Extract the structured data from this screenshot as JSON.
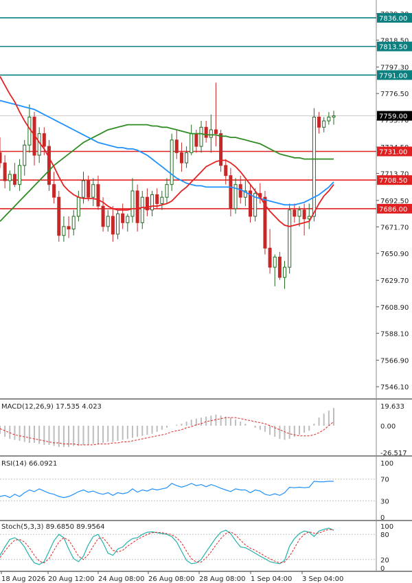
{
  "chart_data": {
    "type": "candlestick",
    "colors": {
      "up_candle": "#1e6b1e",
      "down_candle": "#c62828",
      "ma_fast": "#e62020",
      "ma_mid": "#1e90ff",
      "ma_slow": "#2e8b22",
      "support_line": "#e02020",
      "resistance_line": "#0b7f7f",
      "tag_red": "#e02020",
      "tag_teal": "#0b7f7f",
      "tag_current": "#000000",
      "macd_hist": "#bdbdbd",
      "macd_signal": "#e02020",
      "rsi_line": "#1e90ff",
      "stoch_main": "#20b2aa",
      "stoch_signal": "#e02020"
    },
    "price_axis": {
      "ticks": [
        "7839.30",
        "7818.50",
        "7797.30",
        "7776.50",
        "7755.70",
        "7734.50",
        "7713.70",
        "7692.50",
        "7671.70",
        "7650.90",
        "7629.70",
        "7608.90",
        "7588.10",
        "7566.90",
        "7546.10"
      ],
      "ylim": [
        7537.0,
        7850.0
      ]
    },
    "horizontal_levels": [
      {
        "value": 7836.0,
        "label": "7836.00",
        "kind": "resistance"
      },
      {
        "value": 7813.5,
        "label": "7813.50",
        "kind": "resistance"
      },
      {
        "value": 7791.0,
        "label": "7791.00",
        "kind": "resistance"
      },
      {
        "value": 7731.0,
        "label": "7731.00",
        "kind": "support"
      },
      {
        "value": 7708.5,
        "label": "7708.50",
        "kind": "support"
      },
      {
        "value": 7686.0,
        "label": "7686.00",
        "kind": "support"
      }
    ],
    "current_price": {
      "value": 7759.0,
      "label": "7759.00"
    },
    "x_labels": [
      "18 Aug 2026",
      "20 Aug 12:00",
      "24 Aug 08:00",
      "26 Aug 08:00",
      "28 Aug 08:00",
      "1 Sep 04:00",
      "3 Sep 04:00"
    ],
    "candles": [
      {
        "o": 7730,
        "h": 7742,
        "l": 7718,
        "c": 7722
      },
      {
        "o": 7722,
        "h": 7728,
        "l": 7702,
        "c": 7708
      },
      {
        "o": 7708,
        "h": 7716,
        "l": 7700,
        "c": 7713
      },
      {
        "o": 7713,
        "h": 7722,
        "l": 7703,
        "c": 7705
      },
      {
        "o": 7705,
        "h": 7725,
        "l": 7700,
        "c": 7720
      },
      {
        "o": 7720,
        "h": 7740,
        "l": 7712,
        "c": 7736
      },
      {
        "o": 7736,
        "h": 7768,
        "l": 7730,
        "c": 7758
      },
      {
        "o": 7758,
        "h": 7762,
        "l": 7720,
        "c": 7728
      },
      {
        "o": 7728,
        "h": 7750,
        "l": 7722,
        "c": 7745
      },
      {
        "o": 7745,
        "h": 7750,
        "l": 7728,
        "c": 7735
      },
      {
        "o": 7735,
        "h": 7740,
        "l": 7700,
        "c": 7705
      },
      {
        "o": 7705,
        "h": 7715,
        "l": 7690,
        "c": 7695
      },
      {
        "o": 7695,
        "h": 7700,
        "l": 7660,
        "c": 7665
      },
      {
        "o": 7665,
        "h": 7680,
        "l": 7660,
        "c": 7672
      },
      {
        "o": 7672,
        "h": 7680,
        "l": 7663,
        "c": 7670
      },
      {
        "o": 7670,
        "h": 7685,
        "l": 7665,
        "c": 7680
      },
      {
        "o": 7680,
        "h": 7700,
        "l": 7676,
        "c": 7695
      },
      {
        "o": 7695,
        "h": 7715,
        "l": 7690,
        "c": 7708
      },
      {
        "o": 7708,
        "h": 7712,
        "l": 7692,
        "c": 7695
      },
      {
        "o": 7695,
        "h": 7710,
        "l": 7688,
        "c": 7705
      },
      {
        "o": 7705,
        "h": 7712,
        "l": 7685,
        "c": 7688
      },
      {
        "o": 7688,
        "h": 7695,
        "l": 7668,
        "c": 7672
      },
      {
        "o": 7672,
        "h": 7685,
        "l": 7668,
        "c": 7680
      },
      {
        "o": 7680,
        "h": 7688,
        "l": 7660,
        "c": 7666
      },
      {
        "o": 7666,
        "h": 7685,
        "l": 7662,
        "c": 7682
      },
      {
        "o": 7682,
        "h": 7690,
        "l": 7670,
        "c": 7675
      },
      {
        "o": 7675,
        "h": 7682,
        "l": 7668,
        "c": 7680
      },
      {
        "o": 7680,
        "h": 7710,
        "l": 7675,
        "c": 7700
      },
      {
        "o": 7700,
        "h": 7705,
        "l": 7668,
        "c": 7675
      },
      {
        "o": 7675,
        "h": 7700,
        "l": 7670,
        "c": 7695
      },
      {
        "o": 7695,
        "h": 7702,
        "l": 7680,
        "c": 7685
      },
      {
        "o": 7685,
        "h": 7700,
        "l": 7680,
        "c": 7697
      },
      {
        "o": 7697,
        "h": 7702,
        "l": 7686,
        "c": 7690
      },
      {
        "o": 7690,
        "h": 7700,
        "l": 7685,
        "c": 7695
      },
      {
        "o": 7695,
        "h": 7710,
        "l": 7690,
        "c": 7705
      },
      {
        "o": 7705,
        "h": 7745,
        "l": 7700,
        "c": 7740
      },
      {
        "o": 7740,
        "h": 7748,
        "l": 7725,
        "c": 7730
      },
      {
        "o": 7730,
        "h": 7738,
        "l": 7715,
        "c": 7722
      },
      {
        "o": 7722,
        "h": 7735,
        "l": 7718,
        "c": 7730
      },
      {
        "o": 7730,
        "h": 7752,
        "l": 7728,
        "c": 7745
      },
      {
        "o": 7745,
        "h": 7748,
        "l": 7730,
        "c": 7735
      },
      {
        "o": 7735,
        "h": 7755,
        "l": 7730,
        "c": 7750
      },
      {
        "o": 7750,
        "h": 7755,
        "l": 7738,
        "c": 7742
      },
      {
        "o": 7742,
        "h": 7760,
        "l": 7730,
        "c": 7748
      },
      {
        "o": 7748,
        "h": 7785,
        "l": 7735,
        "c": 7745
      },
      {
        "o": 7745,
        "h": 7748,
        "l": 7715,
        "c": 7720
      },
      {
        "o": 7720,
        "h": 7725,
        "l": 7705,
        "c": 7712
      },
      {
        "o": 7712,
        "h": 7718,
        "l": 7680,
        "c": 7686
      },
      {
        "o": 7686,
        "h": 7710,
        "l": 7682,
        "c": 7705
      },
      {
        "o": 7705,
        "h": 7712,
        "l": 7690,
        "c": 7695
      },
      {
        "o": 7695,
        "h": 7708,
        "l": 7688,
        "c": 7700
      },
      {
        "o": 7700,
        "h": 7705,
        "l": 7675,
        "c": 7680
      },
      {
        "o": 7680,
        "h": 7702,
        "l": 7676,
        "c": 7698
      },
      {
        "o": 7698,
        "h": 7706,
        "l": 7690,
        "c": 7695
      },
      {
        "o": 7695,
        "h": 7700,
        "l": 7650,
        "c": 7655
      },
      {
        "o": 7655,
        "h": 7670,
        "l": 7635,
        "c": 7640
      },
      {
        "o": 7640,
        "h": 7650,
        "l": 7625,
        "c": 7648
      },
      {
        "o": 7648,
        "h": 7652,
        "l": 7630,
        "c": 7632
      },
      {
        "o": 7632,
        "h": 7645,
        "l": 7623,
        "c": 7640
      },
      {
        "o": 7640,
        "h": 7690,
        "l": 7635,
        "c": 7685
      },
      {
        "o": 7685,
        "h": 7690,
        "l": 7675,
        "c": 7680
      },
      {
        "o": 7680,
        "h": 7688,
        "l": 7672,
        "c": 7685
      },
      {
        "o": 7685,
        "h": 7690,
        "l": 7665,
        "c": 7678
      },
      {
        "o": 7678,
        "h": 7690,
        "l": 7670,
        "c": 7680
      },
      {
        "o": 7680,
        "h": 7765,
        "l": 7676,
        "c": 7758
      },
      {
        "o": 7758,
        "h": 7762,
        "l": 7745,
        "c": 7750
      },
      {
        "o": 7750,
        "h": 7758,
        "l": 7746,
        "c": 7755
      },
      {
        "o": 7755,
        "h": 7762,
        "l": 7752,
        "c": 7758
      },
      {
        "o": 7758,
        "h": 7763,
        "l": 7752,
        "c": 7759
      }
    ],
    "ma_fast": [
      7790,
      7783,
      7776,
      7770,
      7762,
      7755,
      7749,
      7744,
      7738,
      7733,
      7726,
      7719,
      7711,
      7704,
      7700,
      7697,
      7695,
      7694,
      7694,
      7694,
      7693,
      7691,
      7688,
      7686,
      7685,
      7685,
      7685,
      7686,
      7686,
      7687,
      7687,
      7688,
      7688,
      7689,
      7690,
      7692,
      7696,
      7700,
      7703,
      7707,
      7711,
      7715,
      7719,
      7721,
      7723,
      7724,
      7724,
      7722,
      7719,
      7715,
      7710,
      7705,
      7700,
      7695,
      7689,
      7684,
      7680,
      7676,
      7673,
      7672,
      7673,
      7674,
      7675,
      7676,
      7683,
      7690,
      7696,
      7700,
      7705
    ],
    "ma_mid": [
      7771,
      7770,
      7769,
      7768,
      7767,
      7766,
      7765,
      7764,
      7762,
      7760,
      7758,
      7756,
      7754,
      7752,
      7750,
      7748,
      7746,
      7744,
      7742,
      7740,
      7738,
      7737,
      7736,
      7735,
      7734,
      7734,
      7733,
      7733,
      7732,
      7730,
      7728,
      7725,
      7722,
      7719,
      7716,
      7713,
      7710,
      7708,
      7706,
      7705,
      7704,
      7704,
      7703,
      7703,
      7703,
      7703,
      7703,
      7703,
      7702,
      7701,
      7699,
      7697,
      7695,
      7694,
      7693,
      7692,
      7691,
      7690,
      7689,
      7689,
      7689,
      7690,
      7691,
      7693,
      7695,
      7697,
      7700,
      7703,
      7707
    ],
    "ma_slow": [
      7676,
      7680,
      7684,
      7688,
      7692,
      7696,
      7700,
      7704,
      7708,
      7712,
      7716,
      7720,
      7723,
      7726,
      7729,
      7732,
      7735,
      7738,
      7740,
      7742,
      7744,
      7746,
      7748,
      7749,
      7750,
      7751,
      7752,
      7752,
      7752,
      7752,
      7752,
      7751,
      7751,
      7750,
      7750,
      7749,
      7748,
      7747,
      7746,
      7745,
      7745,
      7745,
      7744,
      7744,
      7744,
      7743,
      7743,
      7742,
      7742,
      7741,
      7740,
      7739,
      7738,
      7737,
      7735,
      7733,
      7731,
      7729,
      7728,
      7727,
      7726,
      7726,
      7725,
      7725,
      7725,
      7725,
      7725,
      7725,
      7725
    ],
    "macd": {
      "label": "MACD(12,26,9) 17.535 4.023",
      "ticks": [
        "19.633",
        "0.00",
        "-26.517"
      ],
      "range": [
        -26.517,
        19.633
      ],
      "histogram": [
        -8,
        -11,
        -13,
        -14,
        -15,
        -16,
        -17,
        -17,
        -18,
        -19,
        -19,
        -20,
        -21,
        -21,
        -21,
        -20,
        -20,
        -19,
        -19,
        -18,
        -18,
        -17,
        -16,
        -16,
        -15,
        -14,
        -13,
        -12,
        -11,
        -10,
        -9,
        -8,
        -6,
        -4,
        -2,
        0,
        1,
        2,
        4,
        6,
        7,
        8,
        9,
        10,
        11,
        10,
        9,
        8,
        6,
        4,
        2,
        0,
        -2,
        -4,
        -6,
        -9,
        -11,
        -13,
        -14,
        -13,
        -11,
        -9,
        -7,
        -5,
        2,
        8,
        12,
        15,
        17.5
      ],
      "signal": [
        -3,
        -5,
        -7,
        -9,
        -10,
        -11,
        -12,
        -13,
        -14,
        -15,
        -16,
        -17,
        -17,
        -18,
        -18,
        -18,
        -19,
        -19,
        -19,
        -19,
        -18,
        -18,
        -18,
        -17,
        -17,
        -16,
        -16,
        -15,
        -14,
        -13,
        -12,
        -11,
        -10,
        -9,
        -8,
        -6,
        -5,
        -4,
        -2,
        -1,
        1,
        2,
        4,
        5,
        6,
        7,
        8,
        8,
        8,
        7,
        6,
        5,
        4,
        3,
        2,
        0,
        -2,
        -4,
        -6,
        -8,
        -9,
        -10,
        -10,
        -10,
        -9,
        -7,
        -4,
        0,
        4
      ]
    },
    "rsi": {
      "label": "RSI(14) 66.0921",
      "ticks": [
        "100",
        "70",
        "30",
        "0"
      ],
      "values": [
        38,
        40,
        36,
        42,
        38,
        45,
        50,
        47,
        52,
        48,
        44,
        42,
        38,
        36,
        38,
        42,
        47,
        50,
        46,
        48,
        44,
        42,
        45,
        40,
        45,
        43,
        45,
        52,
        46,
        50,
        48,
        52,
        50,
        52,
        54,
        62,
        58,
        55,
        58,
        62,
        58,
        60,
        56,
        60,
        57,
        53,
        50,
        47,
        52,
        50,
        50,
        45,
        50,
        48,
        42,
        40,
        43,
        40,
        45,
        55,
        54,
        55,
        54,
        55,
        66,
        65,
        65,
        66,
        66
      ]
    },
    "stoch": {
      "label": "Stoch(5,3,3) 89.6850 89.9564",
      "ticks": [
        "100",
        "80",
        "20",
        "0"
      ],
      "main": [
        30,
        50,
        68,
        72,
        65,
        50,
        28,
        12,
        8,
        15,
        40,
        65,
        80,
        72,
        45,
        22,
        15,
        28,
        55,
        75,
        80,
        60,
        35,
        30,
        45,
        50,
        62,
        70,
        72,
        80,
        85,
        86,
        84,
        82,
        80,
        75,
        62,
        40,
        18,
        10,
        12,
        20,
        38,
        55,
        72,
        85,
        90,
        82,
        65,
        50,
        48,
        42,
        35,
        28,
        22,
        15,
        12,
        10,
        18,
        52,
        70,
        82,
        88,
        85,
        75,
        88,
        92,
        95,
        90
      ],
      "signal": [
        25,
        40,
        55,
        66,
        68,
        62,
        48,
        30,
        16,
        12,
        22,
        42,
        62,
        72,
        66,
        48,
        28,
        20,
        32,
        52,
        70,
        72,
        58,
        42,
        38,
        42,
        52,
        60,
        68,
        74,
        80,
        84,
        85,
        84,
        82,
        79,
        72,
        60,
        40,
        22,
        14,
        14,
        24,
        38,
        55,
        70,
        82,
        86,
        79,
        66,
        55,
        47,
        42,
        35,
        28,
        22,
        16,
        12,
        14,
        28,
        47,
        68,
        80,
        86,
        83,
        83,
        88,
        92,
        90
      ]
    }
  }
}
